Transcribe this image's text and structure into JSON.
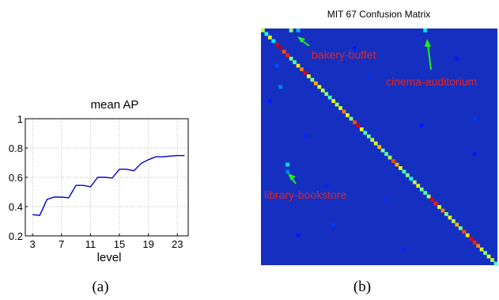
{
  "chart_data": [
    {
      "type": "line",
      "title": "mean AP",
      "xlabel": "level",
      "ylabel": "",
      "xlim": [
        2,
        24.5
      ],
      "ylim": [
        0.2,
        1.0
      ],
      "grid": true,
      "x_ticks": [
        "3",
        "7",
        "11",
        "15",
        "19",
        "23"
      ],
      "y_ticks": [
        "0.2",
        "0.4",
        "0.6",
        "0.8",
        "1"
      ],
      "series": [
        {
          "color": "#0000cc",
          "x": [
            3,
            4,
            5,
            6,
            7,
            8,
            9,
            10,
            11,
            12,
            13,
            14,
            15,
            16,
            17,
            18,
            19,
            20,
            21,
            22,
            23,
            24
          ],
          "y": [
            0.345,
            0.34,
            0.45,
            0.465,
            0.465,
            0.46,
            0.545,
            0.545,
            0.535,
            0.6,
            0.6,
            0.595,
            0.655,
            0.655,
            0.645,
            0.695,
            0.72,
            0.74,
            0.74,
            0.745,
            0.748,
            0.748
          ]
        }
      ],
      "caption": "(a)"
    },
    {
      "type": "heatmap",
      "title": "MIT 67 Confusion Matrix",
      "size": 67,
      "colormap": "jet",
      "background_color": "#1530c0",
      "diagonal_values": [
        0.55,
        0.4,
        0.6,
        0.35,
        0.9,
        0.95,
        0.8,
        0.85,
        0.5,
        0.45,
        0.65,
        0.75,
        0.9,
        0.6,
        0.5,
        0.7,
        0.6,
        0.55,
        0.5,
        0.45,
        0.6,
        0.55,
        0.6,
        0.75,
        0.6,
        0.5,
        0.8,
        0.9,
        0.6,
        0.45,
        0.5,
        0.55,
        0.6,
        0.7,
        0.5,
        0.45,
        0.55,
        0.8,
        0.7,
        0.6,
        0.45,
        0.5,
        0.4,
        0.55,
        0.6,
        0.5,
        0.45,
        0.55,
        0.9,
        0.85,
        0.6,
        0.75,
        0.5,
        0.6,
        0.55,
        0.7,
        0.5,
        0.8,
        0.65,
        0.9,
        0.85,
        0.75,
        0.6,
        0.5,
        0.6,
        0.55,
        0.45
      ],
      "off_diagonal": [
        {
          "row": 0,
          "col": 8,
          "value": 0.5
        },
        {
          "row": 0,
          "col": 10,
          "value": 0.3
        },
        {
          "row": 0,
          "col": 46,
          "value": 0.35
        },
        {
          "row": 16,
          "col": 5,
          "value": 0.25
        },
        {
          "row": 38,
          "col": 7,
          "value": 0.35
        },
        {
          "row": 40,
          "col": 7,
          "value": 0.25
        },
        {
          "row": 10,
          "col": 4,
          "value": 0.2
        },
        {
          "row": 25,
          "col": 60,
          "value": 0.18
        },
        {
          "row": 55,
          "col": 20,
          "value": 0.18
        },
        {
          "row": 13,
          "col": 30,
          "value": 0.17
        },
        {
          "row": 48,
          "col": 35,
          "value": 0.17
        },
        {
          "row": 30,
          "col": 12,
          "value": 0.16
        },
        {
          "row": 62,
          "col": 40,
          "value": 0.16
        },
        {
          "row": 8,
          "col": 55,
          "value": 0.15
        },
        {
          "row": 35,
          "col": 60,
          "value": 0.15
        },
        {
          "row": 20,
          "col": 2,
          "value": 0.15
        },
        {
          "row": 58,
          "col": 10,
          "value": 0.15
        },
        {
          "row": 44,
          "col": 18,
          "value": 0.16
        },
        {
          "row": 5,
          "col": 26,
          "value": 0.15
        },
        {
          "row": 27,
          "col": 45,
          "value": 0.15
        }
      ],
      "annotations": [
        {
          "text": "bakery-buffet",
          "row": 0,
          "col": 10
        },
        {
          "text": "cinema-auditorium",
          "row": 0,
          "col": 46
        },
        {
          "text": "library-bookstore",
          "row": 38,
          "col": 7
        }
      ],
      "caption": "(b)"
    }
  ]
}
